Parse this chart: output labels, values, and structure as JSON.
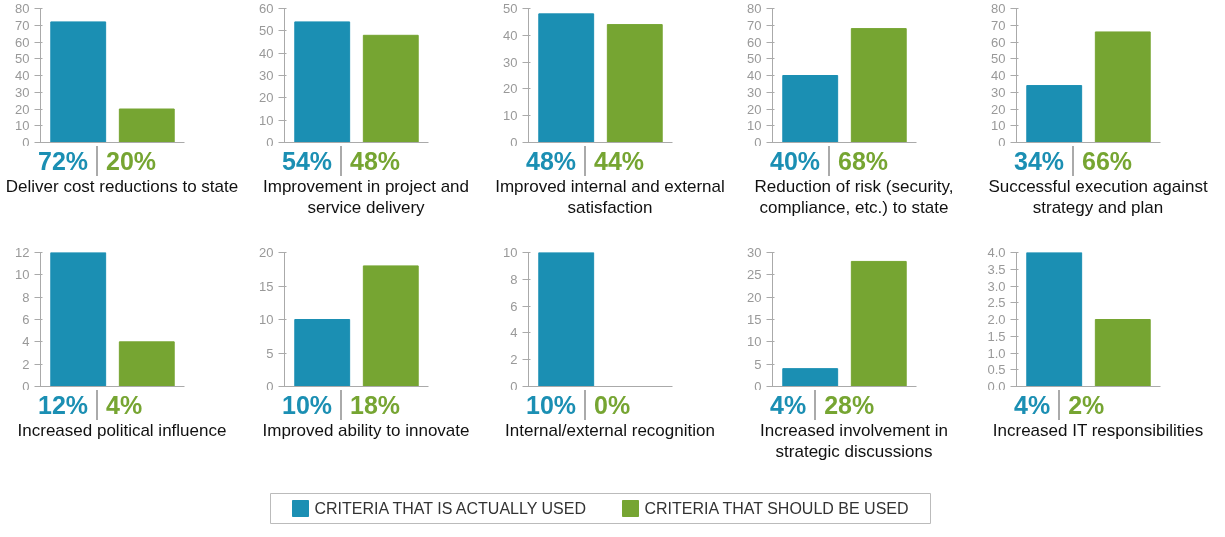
{
  "chart_data": [
    {
      "type": "bar",
      "categories": [
        null
      ],
      "xlabel": "Deliver cost reductions to state",
      "ylim": [
        0,
        80
      ],
      "yticks": [
        0,
        10,
        20,
        30,
        40,
        50,
        60,
        70,
        80
      ],
      "tick_labels": "y",
      "legend": "bottom",
      "series": [
        {
          "name": "CRITERIA THAT IS ACTUALLY USED",
          "color": "#1b8fb3",
          "values": [
            72
          ],
          "value_labels": [
            "72%"
          ]
        },
        {
          "name": "CRITERIA THAT SHOULD BE USED",
          "color": "#76a532",
          "values": [
            20
          ],
          "value_labels": [
            "20%"
          ]
        }
      ]
    },
    {
      "type": "bar",
      "categories": [
        null
      ],
      "xlabel": "Improvement in project and service delivery",
      "ylim": [
        0,
        60
      ],
      "yticks": [
        0,
        10,
        20,
        30,
        40,
        50,
        60
      ],
      "tick_labels": "y",
      "series": [
        {
          "color": "#1b8fb3",
          "values": [
            54
          ],
          "value_labels": [
            "54%"
          ]
        },
        {
          "color": "#76a532",
          "values": [
            48
          ],
          "value_labels": [
            "48%"
          ]
        }
      ]
    },
    {
      "type": "bar",
      "categories": [
        null
      ],
      "xlabel": "Improved internal and external satisfaction",
      "ylim": [
        0,
        50
      ],
      "yticks": [
        0,
        10,
        20,
        30,
        40,
        50
      ],
      "tick_labels": "y",
      "series": [
        {
          "color": "#1b8fb3",
          "values": [
            48
          ],
          "value_labels": [
            "48%"
          ]
        },
        {
          "color": "#76a532",
          "values": [
            44
          ],
          "value_labels": [
            "44%"
          ]
        }
      ]
    },
    {
      "type": "bar",
      "categories": [
        null
      ],
      "xlabel": "Reduction of risk (security, compliance, etc.) to state",
      "ylim": [
        0,
        80
      ],
      "yticks": [
        0,
        10,
        20,
        30,
        40,
        50,
        60,
        70,
        80
      ],
      "tick_labels": "y",
      "series": [
        {
          "color": "#1b8fb3",
          "values": [
            40
          ],
          "value_labels": [
            "40%"
          ]
        },
        {
          "color": "#76a532",
          "values": [
            68
          ],
          "value_labels": [
            "68%"
          ]
        }
      ]
    },
    {
      "type": "bar",
      "categories": [
        null
      ],
      "xlabel": "Successful execution against strategy and plan",
      "ylim": [
        0,
        80
      ],
      "yticks": [
        0,
        10,
        20,
        30,
        40,
        50,
        60,
        70,
        80
      ],
      "tick_labels": "y",
      "series": [
        {
          "color": "#1b8fb3",
          "values": [
            34
          ],
          "value_labels": [
            "34%"
          ]
        },
        {
          "color": "#76a532",
          "values": [
            66
          ],
          "value_labels": [
            "66%"
          ]
        }
      ]
    },
    {
      "type": "bar",
      "categories": [
        null
      ],
      "xlabel": "Increased political influence",
      "ylim": [
        0,
        12
      ],
      "yticks": [
        0,
        2,
        4,
        6,
        8,
        10,
        12
      ],
      "tick_labels": "y",
      "series": [
        {
          "color": "#1b8fb3",
          "values": [
            12
          ],
          "value_labels": [
            "12%"
          ]
        },
        {
          "color": "#76a532",
          "values": [
            4
          ],
          "value_labels": [
            "4%"
          ]
        }
      ]
    },
    {
      "type": "bar",
      "categories": [
        null
      ],
      "xlabel": "Improved ability to innovate",
      "ylim": [
        0,
        20
      ],
      "yticks": [
        0,
        5,
        10,
        15,
        20
      ],
      "tick_labels": "y",
      "series": [
        {
          "color": "#1b8fb3",
          "values": [
            10
          ],
          "value_labels": [
            "10%"
          ]
        },
        {
          "color": "#76a532",
          "values": [
            18
          ],
          "value_labels": [
            "18%"
          ]
        }
      ]
    },
    {
      "type": "bar",
      "categories": [
        null
      ],
      "xlabel": "Internal/external recognition",
      "ylim": [
        0,
        10
      ],
      "yticks": [
        0,
        2,
        4,
        6,
        8,
        10
      ],
      "tick_labels": "y",
      "series": [
        {
          "color": "#1b8fb3",
          "values": [
            10
          ],
          "value_labels": [
            "10%"
          ]
        },
        {
          "color": "#76a532",
          "values": [
            0
          ],
          "value_labels": [
            "0%"
          ]
        }
      ]
    },
    {
      "type": "bar",
      "categories": [
        null
      ],
      "xlabel": "Increased involvement in strategic discussions",
      "ylim": [
        0,
        30
      ],
      "yticks": [
        0,
        5,
        10,
        15,
        20,
        25,
        30
      ],
      "tick_labels": "y",
      "series": [
        {
          "color": "#1b8fb3",
          "values": [
            4
          ],
          "value_labels": [
            "4%"
          ]
        },
        {
          "color": "#76a532",
          "values": [
            28
          ],
          "value_labels": [
            "28%"
          ]
        }
      ]
    },
    {
      "type": "bar",
      "categories": [
        null
      ],
      "xlabel": "Increased IT responsibilities",
      "ylim": [
        0,
        4
      ],
      "yticks": [
        {
          "value": 0,
          "label": "0.0"
        },
        {
          "value": 0.5,
          "label": "0.5"
        },
        {
          "value": 1,
          "label": "1.0"
        },
        {
          "value": 1.5,
          "label": "1.5"
        },
        {
          "value": 2,
          "label": "2.0"
        },
        {
          "value": 2.5,
          "label": "2.5"
        },
        {
          "value": 3,
          "label": "3.0"
        },
        {
          "value": 3.5,
          "label": "3.5"
        },
        {
          "value": 4,
          "label": "4.0"
        }
      ],
      "tick_labels": "y",
      "series": [
        {
          "color": "#1b8fb3",
          "values": [
            4
          ],
          "value_labels": [
            "4%"
          ]
        },
        {
          "color": "#76a532",
          "values": [
            2
          ],
          "value_labels": [
            "2%"
          ]
        }
      ]
    }
  ]
}
